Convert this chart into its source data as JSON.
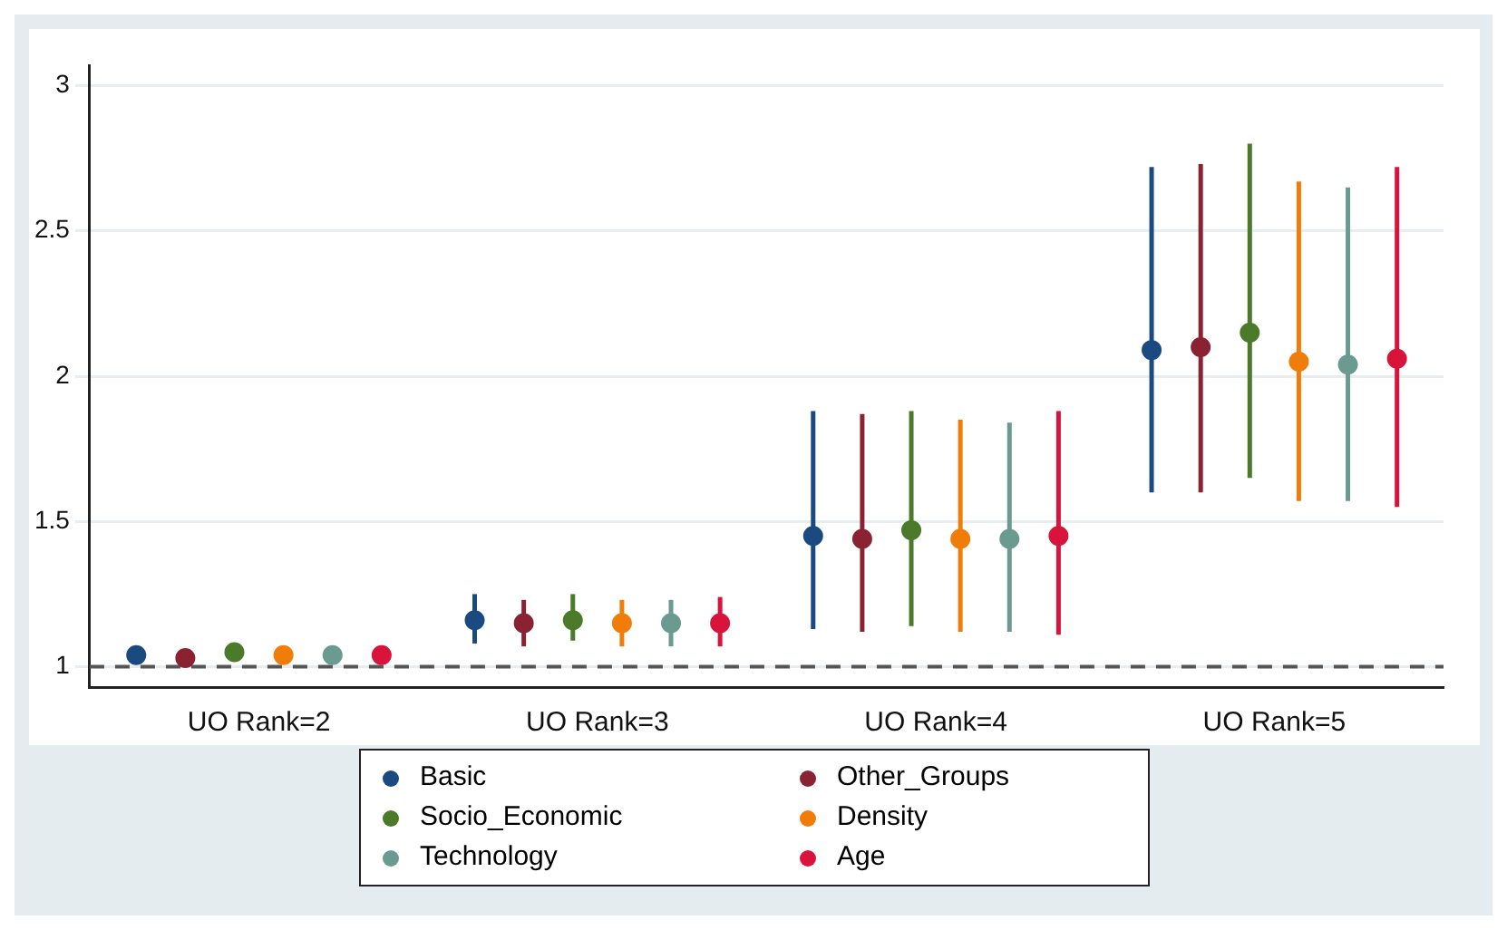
{
  "chart_data": {
    "type": "scatter",
    "categories": [
      "UO Rank=2",
      "UO Rank=3",
      "UO Rank=4",
      "UO Rank=5"
    ],
    "series": [
      {
        "name": "Basic",
        "color": "#1a4a80",
        "values": [
          1.04,
          1.16,
          1.45,
          2.09
        ],
        "errors": [
          [
            1.03,
            1.05
          ],
          [
            1.08,
            1.25
          ],
          [
            1.13,
            1.88
          ],
          [
            1.6,
            2.72
          ]
        ]
      },
      {
        "name": "Other_Groups",
        "color": "#8b2232",
        "values": [
          1.03,
          1.15,
          1.44,
          2.1
        ],
        "errors": [
          [
            1.02,
            1.04
          ],
          [
            1.07,
            1.23
          ],
          [
            1.12,
            1.87
          ],
          [
            1.6,
            2.73
          ]
        ]
      },
      {
        "name": "Socio_Economic",
        "color": "#4a7a2a",
        "values": [
          1.05,
          1.16,
          1.47,
          2.15
        ],
        "errors": [
          [
            1.04,
            1.06
          ],
          [
            1.09,
            1.25
          ],
          [
            1.14,
            1.88
          ],
          [
            1.65,
            2.8
          ]
        ]
      },
      {
        "name": "Density",
        "color": "#f07d0a",
        "values": [
          1.04,
          1.15,
          1.44,
          2.05
        ],
        "errors": [
          [
            1.03,
            1.05
          ],
          [
            1.07,
            1.23
          ],
          [
            1.12,
            1.85
          ],
          [
            1.57,
            2.67
          ]
        ]
      },
      {
        "name": "Technology",
        "color": "#6a9a90",
        "values": [
          1.04,
          1.15,
          1.44,
          2.04
        ],
        "errors": [
          [
            1.03,
            1.05
          ],
          [
            1.07,
            1.23
          ],
          [
            1.12,
            1.84
          ],
          [
            1.57,
            2.65
          ]
        ]
      },
      {
        "name": "Age",
        "color": "#d8143c",
        "values": [
          1.04,
          1.15,
          1.45,
          2.06
        ],
        "errors": [
          [
            1.03,
            1.05
          ],
          [
            1.07,
            1.24
          ],
          [
            1.11,
            1.88
          ],
          [
            1.55,
            2.72
          ]
        ]
      }
    ],
    "ylim": [
      0.93,
      3.07
    ],
    "yticks": [
      1,
      1.5,
      2,
      2.5,
      3
    ],
    "grid": "y",
    "legend": "bottom",
    "marker": "circle",
    "ref_lines": [
      {
        "axis": "y",
        "value": 1,
        "color": "#555555",
        "line_style": "dashed"
      }
    ]
  }
}
